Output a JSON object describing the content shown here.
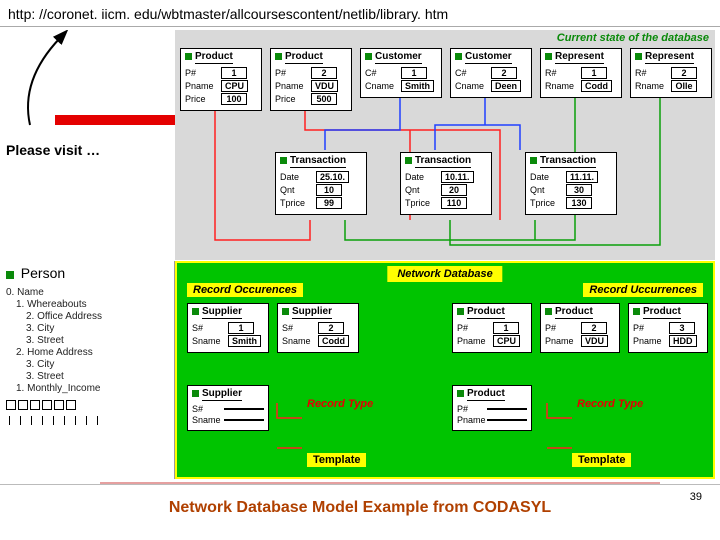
{
  "url": "http: //coronet. iicm. edu/wbtmaster/allcoursescontent/netlib/library. htm",
  "please_visit": "Please visit …",
  "footer_title": "Network Database Model Example from CODASYL",
  "slide_number": "39",
  "colors": {
    "red": "#e40000",
    "green_bullet": "#0a8a0a",
    "upper_bg": "#d9d9d9",
    "lower_bg": "#00c400",
    "yellow": "#ffff00",
    "footer_color": "#b04000",
    "conn_red": "#ff2020",
    "conn_green": "#0aa00a",
    "conn_blue": "#2040ff"
  },
  "upper": {
    "current_state": "Current state of the database",
    "row1": [
      {
        "title": "Product",
        "fields": [
          [
            "P#",
            "1"
          ],
          [
            "Pname",
            "CPU"
          ],
          [
            "Price",
            "100"
          ]
        ]
      },
      {
        "title": "Product",
        "fields": [
          [
            "P#",
            "2"
          ],
          [
            "Pname",
            "VDU"
          ],
          [
            "Price",
            "500"
          ]
        ]
      },
      {
        "title": "Customer",
        "fields": [
          [
            "C#",
            "1"
          ],
          [
            "Cname",
            "Smith"
          ]
        ]
      },
      {
        "title": "Customer",
        "fields": [
          [
            "C#",
            "2"
          ],
          [
            "Cname",
            "Deen"
          ]
        ]
      },
      {
        "title": "Represent",
        "fields": [
          [
            "R#",
            "1"
          ],
          [
            "Rname",
            "Codd"
          ]
        ]
      },
      {
        "title": "Represent",
        "fields": [
          [
            "R#",
            "2"
          ],
          [
            "Rname",
            "Olle"
          ]
        ]
      }
    ],
    "row2": [
      {
        "title": "Transaction",
        "fields": [
          [
            "Date",
            "25.10."
          ],
          [
            "Qnt",
            "10"
          ],
          [
            "Tprice",
            "99"
          ]
        ]
      },
      {
        "title": "Transaction",
        "fields": [
          [
            "Date",
            "10.11."
          ],
          [
            "Qnt",
            "20"
          ],
          [
            "Tprice",
            "110"
          ]
        ]
      },
      {
        "title": "Transaction",
        "fields": [
          [
            "Date",
            "11.11."
          ],
          [
            "Qnt",
            "30"
          ],
          [
            "Tprice",
            "130"
          ]
        ]
      }
    ]
  },
  "lower": {
    "title": "Network Database",
    "rec_occ_left": "Record Occurences",
    "rec_occ_right": "Record Uccurrences",
    "record_type": "Record Type",
    "template": "Template",
    "suppliers": [
      {
        "title": "Supplier",
        "fields": [
          [
            "S#",
            "1"
          ],
          [
            "Sname",
            "Smith"
          ]
        ]
      },
      {
        "title": "Supplier",
        "fields": [
          [
            "S#",
            "2"
          ],
          [
            "Sname",
            "Codd"
          ]
        ]
      }
    ],
    "products": [
      {
        "title": "Product",
        "fields": [
          [
            "P#",
            "1"
          ],
          [
            "Pname",
            "CPU"
          ]
        ]
      },
      {
        "title": "Product",
        "fields": [
          [
            "P#",
            "2"
          ],
          [
            "Pname",
            "VDU"
          ]
        ]
      },
      {
        "title": "Product",
        "fields": [
          [
            "P#",
            "3"
          ],
          [
            "Pname",
            "HDD"
          ]
        ]
      }
    ],
    "supplier_template": {
      "title": "Supplier",
      "fields": [
        [
          "S#",
          ""
        ],
        [
          "Sname",
          ""
        ]
      ]
    },
    "product_template": {
      "title": "Product",
      "fields": [
        [
          "P#",
          ""
        ],
        [
          "Pname",
          ""
        ]
      ]
    }
  },
  "person": {
    "title": "Person",
    "lines": [
      "0. Name",
      "  1. Whereabouts",
      "    2. Office Address",
      "    3. City",
      "    3. Street",
      "  2. Home Address",
      "    3. City",
      "    3. Street",
      "  1. Monthly_Income"
    ]
  }
}
